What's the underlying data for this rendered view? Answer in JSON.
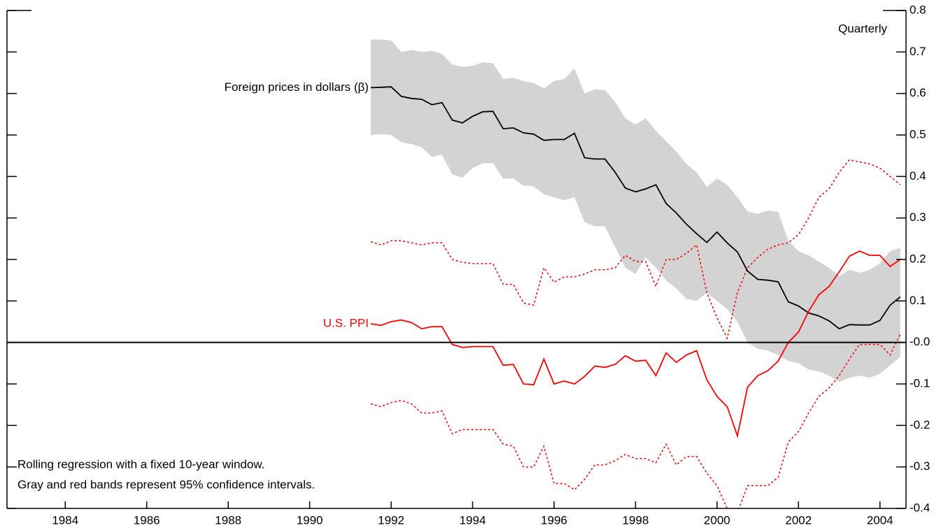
{
  "chart_data": {
    "type": "line",
    "annotations": [
      "Quarterly",
      "Rolling regression with a fixed 10-year window.",
      "Gray and red bands represent 95% confidence intervals."
    ],
    "x": [
      1991.5,
      1991.75,
      1992,
      1992.25,
      1992.5,
      1992.75,
      1993,
      1993.25,
      1993.5,
      1993.75,
      1994,
      1994.25,
      1994.5,
      1994.75,
      1995,
      1995.25,
      1995.5,
      1995.75,
      1996,
      1996.25,
      1996.5,
      1996.75,
      1997,
      1997.25,
      1997.5,
      1997.75,
      1998,
      1998.25,
      1998.5,
      1998.75,
      1999,
      1999.25,
      1999.5,
      1999.75,
      2000,
      2000.25,
      2000.5,
      2000.75,
      2001,
      2001.25,
      2001.5,
      2001.75,
      2002,
      2002.25,
      2002.5,
      2002.75,
      2003,
      2003.25,
      2003.5,
      2003.75,
      2004,
      2004.25,
      2004.5
    ],
    "xlim": [
      1982.57,
      2004.64
    ],
    "xticks": [
      1984,
      1986,
      1988,
      1990,
      1992,
      1994,
      1996,
      1998,
      2000,
      2002,
      2004
    ],
    "ylim": [
      -0.4,
      0.8
    ],
    "yticks": [
      0.8,
      0.7,
      0.6,
      0.5,
      0.4,
      0.3,
      0.2,
      0.1,
      {
        "value": 0,
        "label": "-0.0"
      },
      -0.1,
      -0.2,
      -0.3,
      -0.4
    ],
    "series": [
      {
        "name": "Foreign prices in dollars (β)",
        "color": "#000000",
        "band_style": "fill",
        "band_color": "#d3d3d3",
        "values": [
          0.614,
          0.615,
          0.616,
          0.593,
          0.588,
          0.586,
          0.573,
          0.578,
          0.536,
          0.529,
          0.545,
          0.556,
          0.557,
          0.515,
          0.517,
          0.505,
          0.502,
          0.487,
          0.489,
          0.489,
          0.504,
          0.445,
          0.442,
          0.442,
          0.41,
          0.372,
          0.363,
          0.37,
          0.38,
          0.335,
          0.312,
          0.285,
          0.262,
          0.241,
          0.266,
          0.24,
          0.218,
          0.172,
          0.152,
          0.15,
          0.146,
          0.098,
          0.088,
          0.071,
          0.064,
          0.052,
          0.033,
          0.043,
          0.042,
          0.042,
          0.053,
          0.09,
          0.11
        ],
        "upper": [
          0.73,
          0.73,
          0.728,
          0.7,
          0.705,
          0.7,
          0.703,
          0.695,
          0.67,
          0.664,
          0.667,
          0.675,
          0.673,
          0.635,
          0.638,
          0.63,
          0.625,
          0.612,
          0.63,
          0.635,
          0.66,
          0.6,
          0.61,
          0.608,
          0.58,
          0.54,
          0.525,
          0.54,
          0.51,
          0.485,
          0.46,
          0.43,
          0.41,
          0.375,
          0.395,
          0.38,
          0.35,
          0.315,
          0.31,
          0.318,
          0.315,
          0.245,
          0.22,
          0.21,
          0.195,
          0.18,
          0.16,
          0.175,
          0.168,
          0.175,
          0.19,
          0.22,
          0.228
        ],
        "lower": [
          0.5,
          0.502,
          0.5,
          0.483,
          0.478,
          0.47,
          0.447,
          0.452,
          0.405,
          0.397,
          0.42,
          0.432,
          0.432,
          0.395,
          0.395,
          0.378,
          0.376,
          0.357,
          0.35,
          0.343,
          0.35,
          0.29,
          0.28,
          0.28,
          0.23,
          0.18,
          0.165,
          0.205,
          0.18,
          0.15,
          0.13,
          0.105,
          0.1,
          0.12,
          0.1,
          0.08,
          0.05,
          0,
          -0.015,
          -0.02,
          -0.03,
          -0.045,
          -0.05,
          -0.065,
          -0.07,
          -0.08,
          -0.095,
          -0.085,
          -0.08,
          -0.085,
          -0.075,
          -0.055,
          -0.035
        ]
      },
      {
        "name": "U.S. PPI",
        "color": "#ff0000",
        "band_style": "dotted",
        "band_color": "#ff0000",
        "values": [
          0.045,
          0.041,
          0.05,
          0.054,
          0.048,
          0.033,
          0.038,
          0.038,
          -0.005,
          -0.012,
          -0.01,
          -0.01,
          -0.01,
          -0.055,
          -0.053,
          -0.1,
          -0.102,
          -0.04,
          -0.1,
          -0.093,
          -0.1,
          -0.082,
          -0.057,
          -0.06,
          -0.053,
          -0.032,
          -0.045,
          -0.043,
          -0.08,
          -0.025,
          -0.048,
          -0.03,
          -0.02,
          -0.09,
          -0.13,
          -0.155,
          -0.225,
          -0.108,
          -0.08,
          -0.068,
          -0.045,
          0,
          0.025,
          0.075,
          0.115,
          0.135,
          0.17,
          0.208,
          0.22,
          0.21,
          0.21,
          0.183,
          0.2
        ],
        "upper": [
          0.243,
          0.235,
          0.245,
          0.245,
          0.24,
          0.235,
          0.24,
          0.24,
          0.2,
          0.193,
          0.19,
          0.19,
          0.19,
          0.14,
          0.14,
          0.095,
          0.09,
          0.18,
          0.145,
          0.158,
          0.158,
          0.165,
          0.175,
          0.175,
          0.18,
          0.21,
          0.195,
          0.195,
          0.135,
          0.2,
          0.2,
          0.215,
          0.235,
          0.12,
          0.06,
          0.01,
          0.12,
          0.18,
          0.205,
          0.225,
          0.235,
          0.24,
          0.26,
          0.3,
          0.35,
          0.37,
          0.41,
          0.44,
          0.435,
          0.43,
          0.42,
          0.4,
          0.38
        ],
        "lower": [
          -0.148,
          -0.155,
          -0.145,
          -0.14,
          -0.148,
          -0.17,
          -0.17,
          -0.165,
          -0.22,
          -0.21,
          -0.21,
          -0.21,
          -0.21,
          -0.245,
          -0.25,
          -0.3,
          -0.3,
          -0.25,
          -0.34,
          -0.34,
          -0.355,
          -0.33,
          -0.295,
          -0.295,
          -0.285,
          -0.27,
          -0.28,
          -0.28,
          -0.29,
          -0.245,
          -0.295,
          -0.275,
          -0.275,
          -0.315,
          -0.345,
          -0.4,
          -0.41,
          -0.345,
          -0.345,
          -0.345,
          -0.325,
          -0.24,
          -0.215,
          -0.17,
          -0.13,
          -0.11,
          -0.08,
          -0.04,
          -0.005,
          -0.005,
          -0.005,
          -0.03,
          0.02
        ]
      }
    ]
  }
}
